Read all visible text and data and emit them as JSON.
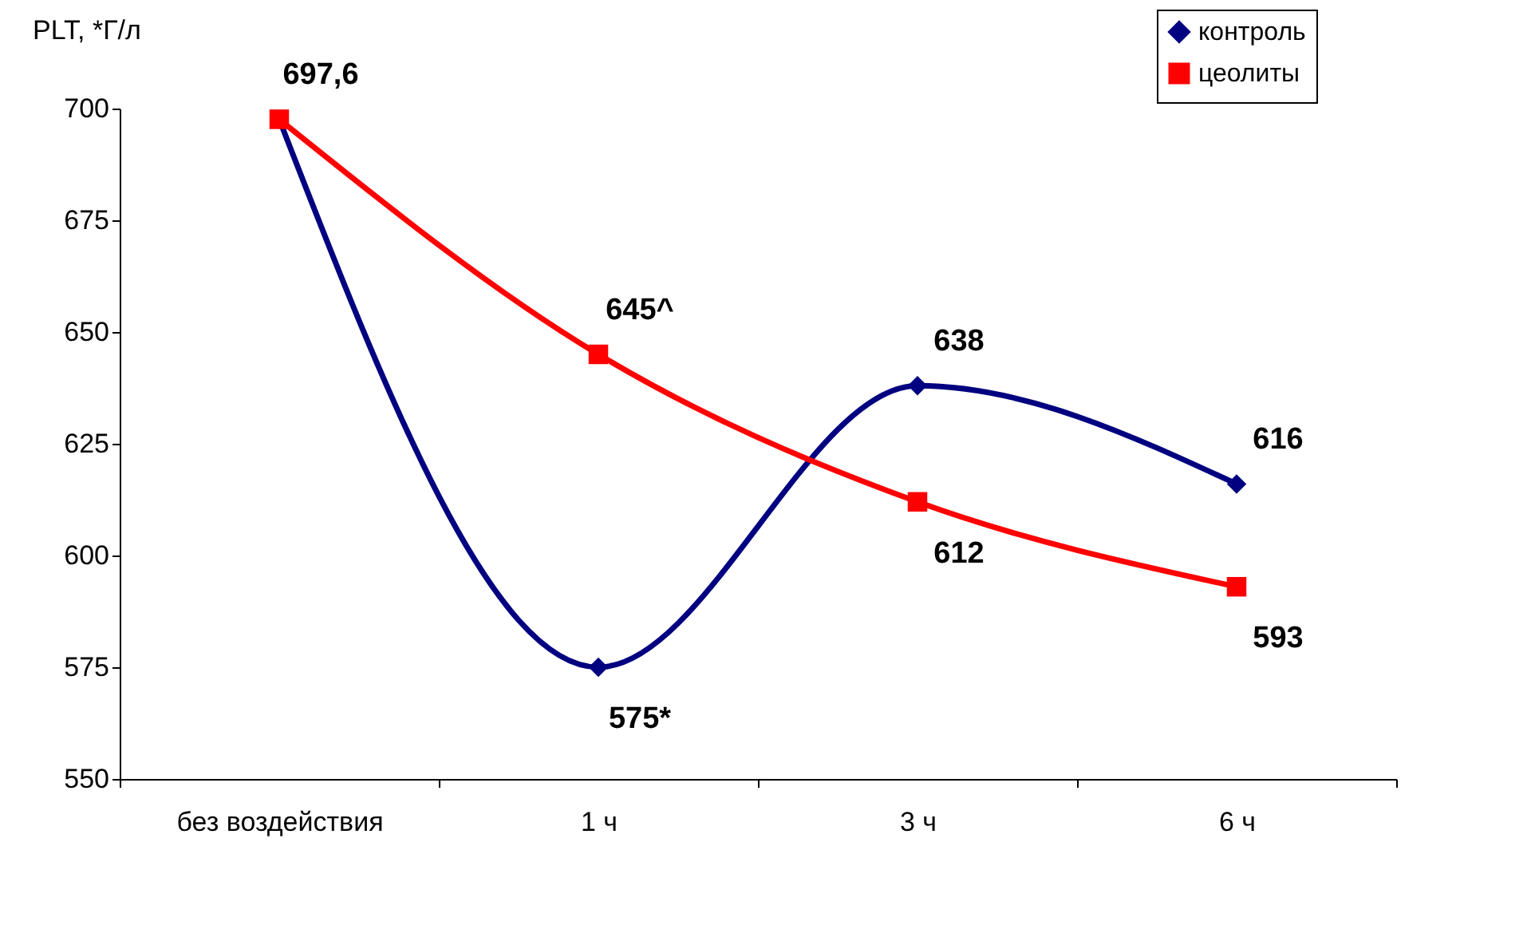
{
  "chart_data": {
    "type": "line",
    "ylabel": "PLT, *Г/л",
    "categories": [
      "без воздействия",
      "1 ч",
      "3 ч",
      "6 ч"
    ],
    "series": [
      {
        "name": "контроль",
        "color": "#000080",
        "marker": "diamond",
        "values": [
          697.6,
          575,
          638,
          616
        ],
        "value_labels": [
          "697,6",
          "575*",
          "638",
          "616"
        ]
      },
      {
        "name": "цеолиты",
        "color": "#ff0000",
        "marker": "square",
        "values": [
          697.6,
          645,
          612,
          593
        ],
        "value_labels": [
          null,
          "645^",
          "612",
          "593"
        ]
      }
    ],
    "ylim": [
      550,
      700
    ],
    "yticks": [
      550,
      575,
      600,
      625,
      650,
      675,
      700
    ],
    "grid": false,
    "legend": "top right",
    "line_style": "solid"
  }
}
